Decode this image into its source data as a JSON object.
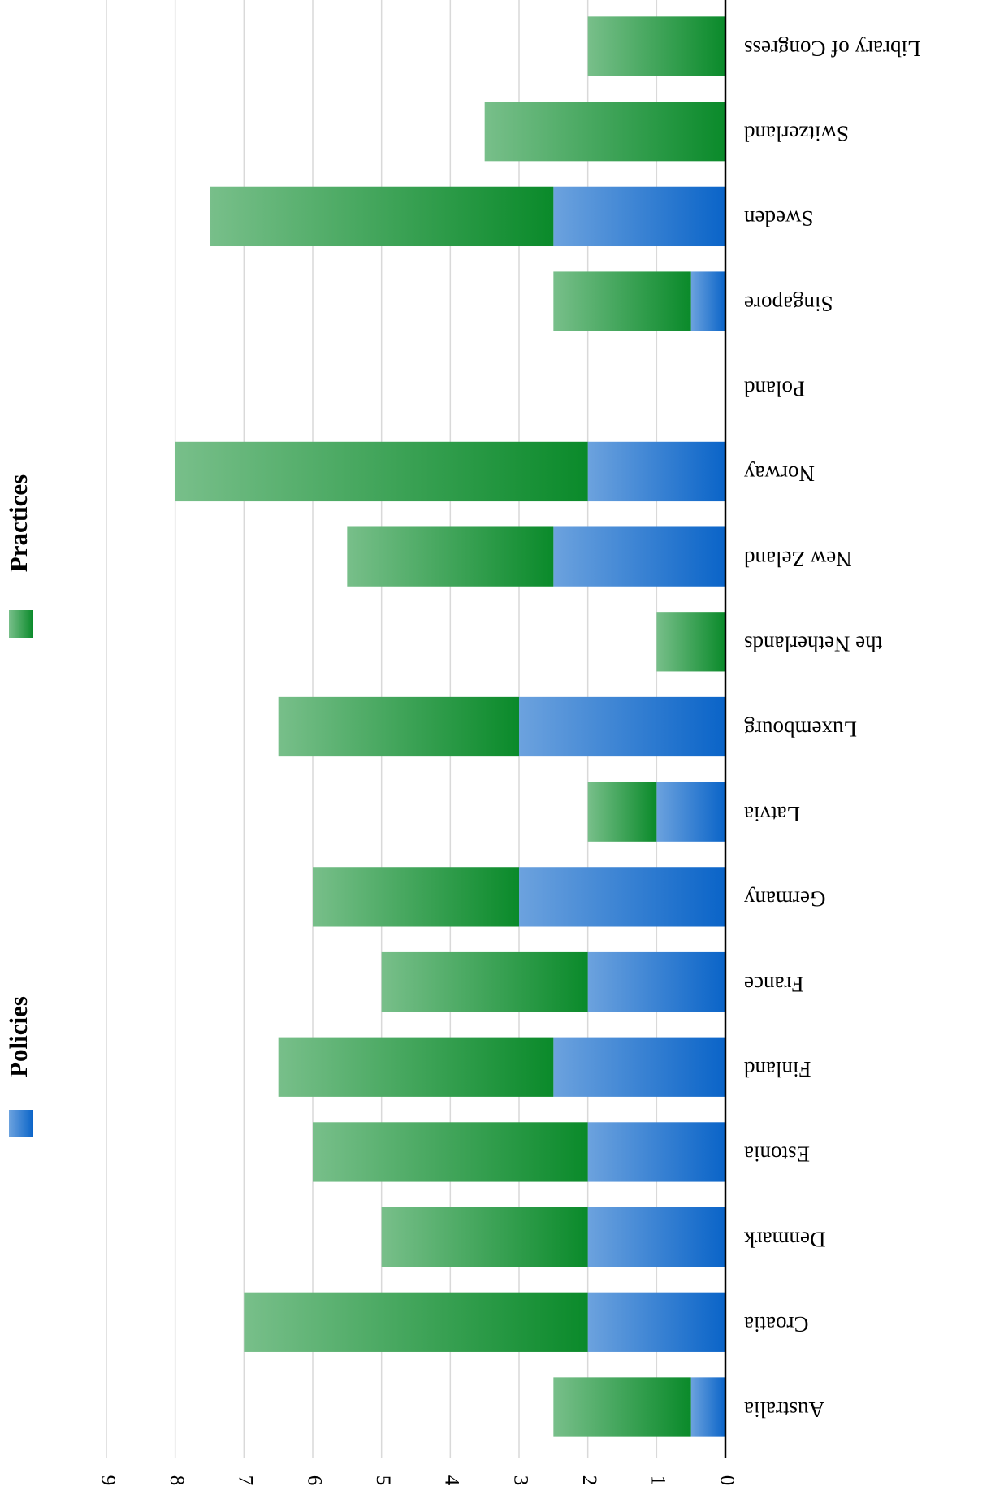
{
  "chart_data": {
    "type": "stacked_bar",
    "categories": [
      "Australia",
      "Croatia",
      "Denmark",
      "Estonia",
      "Finland",
      "France",
      "Germany",
      "Latvia",
      "Luxembourg",
      "the Netherlands",
      "New Zeland",
      "Norway",
      "Poland",
      "Singapore",
      "Sweden",
      "Switzerland",
      "Library of Congress"
    ],
    "series": [
      {
        "name": "Policies",
        "color": "#0a64c8",
        "values": [
          0.5,
          2,
          2,
          2,
          2.5,
          2,
          3,
          1,
          3,
          0,
          2.5,
          2,
          0,
          0.5,
          2.5,
          0,
          0
        ]
      },
      {
        "name": "Practices",
        "color": "#0a8a2a",
        "values": [
          2,
          5,
          3,
          4,
          4,
          3,
          3,
          1,
          3.5,
          1,
          3,
          6,
          0,
          2,
          5,
          3.5,
          2
        ]
      }
    ],
    "ylim": [
      0,
      9
    ],
    "yticks": [
      0,
      1,
      2,
      3,
      4,
      5,
      6,
      7,
      8,
      9
    ],
    "grid": true
  }
}
